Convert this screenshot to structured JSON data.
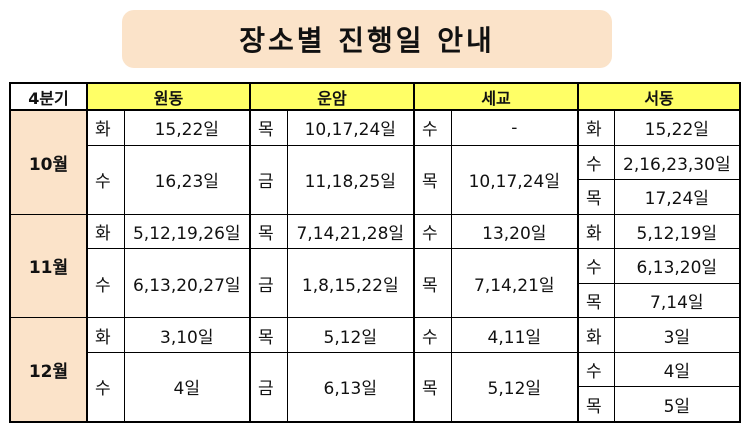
{
  "title": "장소별 진행일 안내",
  "headers": {
    "quarter": "4분기",
    "locations": [
      "원동",
      "운암",
      "세교",
      "서동"
    ]
  },
  "months": [
    {
      "label": "10월",
      "wondong": [
        {
          "day": "화",
          "dates": "15,22일"
        },
        {
          "day": "수",
          "dates": "16,23일"
        }
      ],
      "unam": [
        {
          "day": "목",
          "dates": "10,17,24일"
        },
        {
          "day": "금",
          "dates": "11,18,25일"
        }
      ],
      "segyo": [
        {
          "day": "수",
          "dates": "-"
        },
        {
          "day": "목",
          "dates": "10,17,24일"
        }
      ],
      "seodong": [
        {
          "day": "화",
          "dates": "15,22일"
        },
        {
          "day": "수",
          "dates": "2,16,23,30일"
        },
        {
          "day": "목",
          "dates": "17,24일"
        }
      ]
    },
    {
      "label": "11월",
      "wondong": [
        {
          "day": "화",
          "dates": "5,12,19,26일"
        },
        {
          "day": "수",
          "dates": "6,13,20,27일"
        }
      ],
      "unam": [
        {
          "day": "목",
          "dates": "7,14,21,28일"
        },
        {
          "day": "금",
          "dates": "1,8,15,22일"
        }
      ],
      "segyo": [
        {
          "day": "수",
          "dates": "13,20일"
        },
        {
          "day": "목",
          "dates": "7,14,21일"
        }
      ],
      "seodong": [
        {
          "day": "화",
          "dates": "5,12,19일"
        },
        {
          "day": "수",
          "dates": "6,13,20일"
        },
        {
          "day": "목",
          "dates": "7,14일"
        }
      ]
    },
    {
      "label": "12월",
      "wondong": [
        {
          "day": "화",
          "dates": "3,10일"
        },
        {
          "day": "수",
          "dates": "4일"
        }
      ],
      "unam": [
        {
          "day": "목",
          "dates": "5,12일"
        },
        {
          "day": "금",
          "dates": "6,13일"
        }
      ],
      "segyo": [
        {
          "day": "수",
          "dates": "4,11일"
        },
        {
          "day": "목",
          "dates": "5,12일"
        }
      ],
      "seodong": [
        {
          "day": "화",
          "dates": "3일"
        },
        {
          "day": "수",
          "dates": "4일"
        },
        {
          "day": "목",
          "dates": "5일"
        }
      ]
    }
  ],
  "colors": {
    "title_bg": "#fbe3c9",
    "header_bg": "#ffff66",
    "month_bg": "#fbe3c9"
  }
}
